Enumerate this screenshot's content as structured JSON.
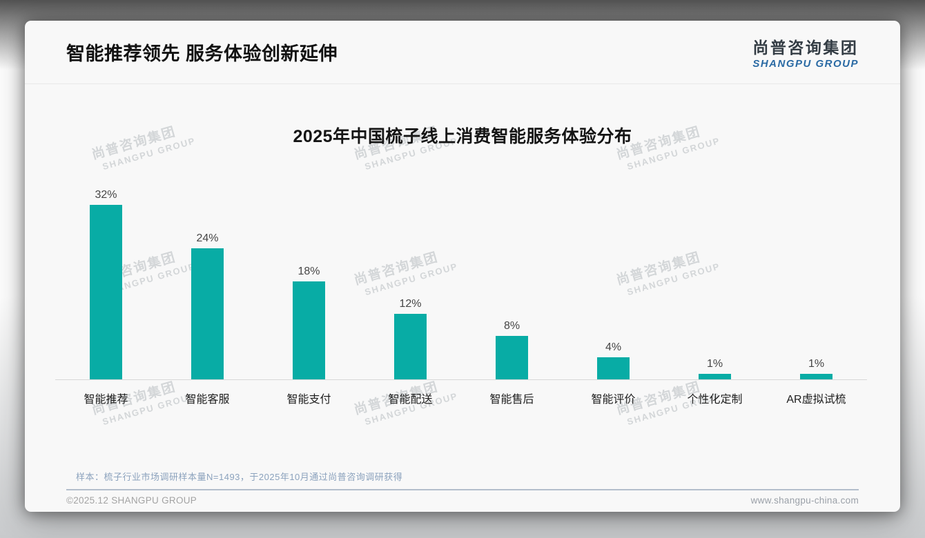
{
  "page": {
    "header_title": "智能推荐领先 服务体验创新延伸",
    "logo": {
      "cn": "尚普咨询集团",
      "en": "SHANGPU GROUP"
    },
    "watermark": {
      "line1": "尚普咨询集团",
      "line2": "SHANGPU GROUP"
    },
    "footnote": "样本：梳子行业市场调研样本量N=1493，于2025年10月通过尚普咨询调研获得",
    "footer": {
      "left": "©2025.12 SHANGPU GROUP",
      "right": "www.shangpu-china.com"
    }
  },
  "chart_data": {
    "type": "bar",
    "title": "2025年中国梳子线上消费智能服务体验分布",
    "categories": [
      "智能推荐",
      "智能客服",
      "智能支付",
      "智能配送",
      "智能售后",
      "智能评价",
      "个性化定制",
      "AR虚拟试梳"
    ],
    "values": [
      32,
      24,
      18,
      12,
      8,
      4,
      1,
      1
    ],
    "value_labels": [
      "32%",
      "24%",
      "18%",
      "12%",
      "8%",
      "4%",
      "1%",
      "1%"
    ],
    "unit": "%",
    "ylim": [
      0,
      35
    ],
    "grid": false,
    "legend": false,
    "bar_color": "#08aca5",
    "axis_line_color": "#d7d7d7",
    "value_label_color": "#454545",
    "category_label_color": "#1d1d1d"
  }
}
